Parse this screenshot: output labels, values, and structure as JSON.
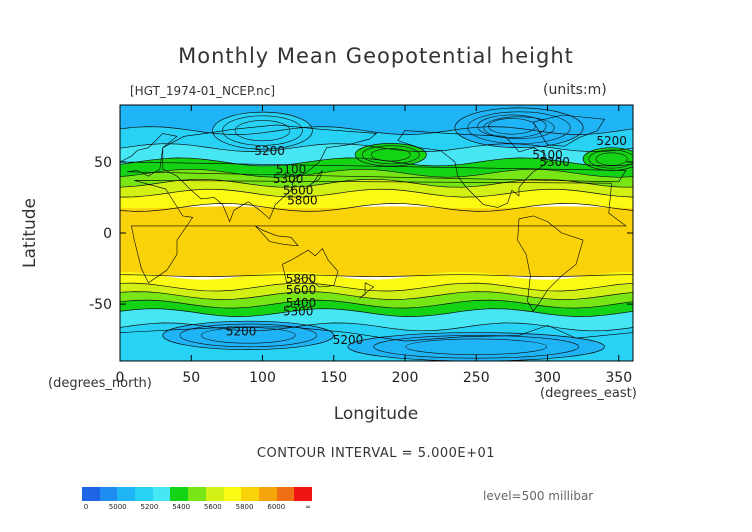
{
  "title": "Monthly Mean Geopotential height",
  "file_label": "[HGT_1974-01_NCEP.nc]",
  "units_label": "(units:m)",
  "contour_interval": "CONTOUR INTERVAL = 5.000E+01",
  "level_label": "level=500 millibar",
  "chart_data": {
    "type": "heatmap",
    "title": "Monthly Mean Geopotential height",
    "variable": "HGT",
    "xlabel": "Longitude",
    "ylabel": "Latitude",
    "x_units": "(degrees_east)",
    "y_units": "(degrees_north)",
    "xlim": [
      0,
      360
    ],
    "ylim": [
      -90,
      90
    ],
    "x_ticks": [
      "0",
      "50",
      "100",
      "150",
      "200",
      "250",
      "300",
      "350"
    ],
    "y_ticks": [
      "50",
      "0",
      "-50"
    ],
    "color_levels": [
      {
        "from": 0,
        "to": 5000,
        "color": "#1e64e6"
      },
      {
        "from": 5000,
        "to": 5100,
        "color": "#1e8cf0"
      },
      {
        "from": 5100,
        "to": 5200,
        "color": "#1eb4f5"
      },
      {
        "from": 5200,
        "to": 5300,
        "color": "#28d2f5"
      },
      {
        "from": 5300,
        "to": 5400,
        "color": "#46e6f5"
      },
      {
        "from": 5400,
        "to": 5500,
        "color": "#14d214"
      },
      {
        "from": 5500,
        "to": 5600,
        "color": "#78e614"
      },
      {
        "from": 5600,
        "to": 5700,
        "color": "#d2f014"
      },
      {
        "from": 5700,
        "to": 5800,
        "color": "#fafa14"
      },
      {
        "from": 5800,
        "to": 5900,
        "color": "#fad20a"
      },
      {
        "from": 5900,
        "to": 6000,
        "color": "#f5a50a"
      },
      {
        "from": 6000,
        "to": 6100,
        "color": "#f06e14"
      },
      {
        "from": 6100,
        "to": 99999,
        "color": "#f01414"
      }
    ],
    "legend_labels": [
      "0",
      "5000",
      "5200",
      "5400",
      "5600",
      "5800",
      "6000",
      "∞"
    ],
    "contour_labels": [
      {
        "text": "5200",
        "lon": 105,
        "lat": 55
      },
      {
        "text": "5100",
        "lon": 120,
        "lat": 42
      },
      {
        "text": "5300",
        "lon": 118,
        "lat": 35
      },
      {
        "text": "5600",
        "lon": 125,
        "lat": 27
      },
      {
        "text": "5800",
        "lon": 128,
        "lat": 20
      },
      {
        "text": "5100",
        "lon": 300,
        "lat": 52
      },
      {
        "text": "5300",
        "lon": 305,
        "lat": 47
      },
      {
        "text": "5200",
        "lon": 345,
        "lat": 62
      },
      {
        "text": "5800",
        "lon": 127,
        "lat": -35
      },
      {
        "text": "5600",
        "lon": 127,
        "lat": -43
      },
      {
        "text": "5400",
        "lon": 127,
        "lat": -52
      },
      {
        "text": "5300",
        "lon": 125,
        "lat": -58
      },
      {
        "text": "5200",
        "lon": 85,
        "lat": -72
      },
      {
        "text": "5200",
        "lon": 160,
        "lat": -78
      }
    ],
    "bands": [
      {
        "lat_top": 90,
        "lat_bottom": 72,
        "height": 5150
      },
      {
        "lat_top": 72,
        "lat_bottom": 60,
        "height": 5250
      },
      {
        "lat_top": 60,
        "lat_bottom": 50,
        "height": 5350
      },
      {
        "lat_top": 50,
        "lat_bottom": 42,
        "height": 5450
      },
      {
        "lat_top": 42,
        "lat_bottom": 35,
        "height": 5550
      },
      {
        "lat_top": 35,
        "lat_bottom": 28,
        "height": 5650
      },
      {
        "lat_top": 28,
        "lat_bottom": 18,
        "height": 5750
      },
      {
        "lat_top": 18,
        "lat_bottom": -30,
        "height": 5880
      },
      {
        "lat_top": -30,
        "lat_bottom": -38,
        "height": 5750
      },
      {
        "lat_top": -38,
        "lat_bottom": -44,
        "height": 5650
      },
      {
        "lat_top": -44,
        "lat_bottom": -50,
        "height": 5550
      },
      {
        "lat_top": -50,
        "lat_bottom": -56,
        "height": 5450
      },
      {
        "lat_top": -56,
        "lat_bottom": -66,
        "height": 5350
      },
      {
        "lat_top": -66,
        "lat_bottom": -90,
        "height": 5250
      }
    ],
    "features": [
      {
        "name": "north-pacific-low",
        "lon": 100,
        "lat": 72,
        "rlon": 35,
        "rlat": 13,
        "height": 5250
      },
      {
        "name": "north-america-low",
        "lon": 275,
        "lat": 75,
        "rlon": 30,
        "rlat": 10,
        "height": 5000
      },
      {
        "name": "north-america-low-outer",
        "lon": 280,
        "lat": 74,
        "rlon": 45,
        "rlat": 14,
        "height": 5150
      },
      {
        "name": "antarctic-low-1",
        "lon": 90,
        "lat": -72,
        "rlon": 60,
        "rlat": 10,
        "height": 5150
      },
      {
        "name": "antarctic-low-2",
        "lon": 250,
        "lat": -80,
        "rlon": 90,
        "rlat": 10,
        "height": 5150
      },
      {
        "name": "north-pacific-ridge",
        "lon": 190,
        "lat": 55,
        "rlon": 25,
        "rlat": 8,
        "height": 5450
      },
      {
        "name": "atlantic-ridge",
        "lon": 345,
        "lat": 52,
        "rlon": 20,
        "rlat": 8,
        "height": 5450
      }
    ]
  }
}
